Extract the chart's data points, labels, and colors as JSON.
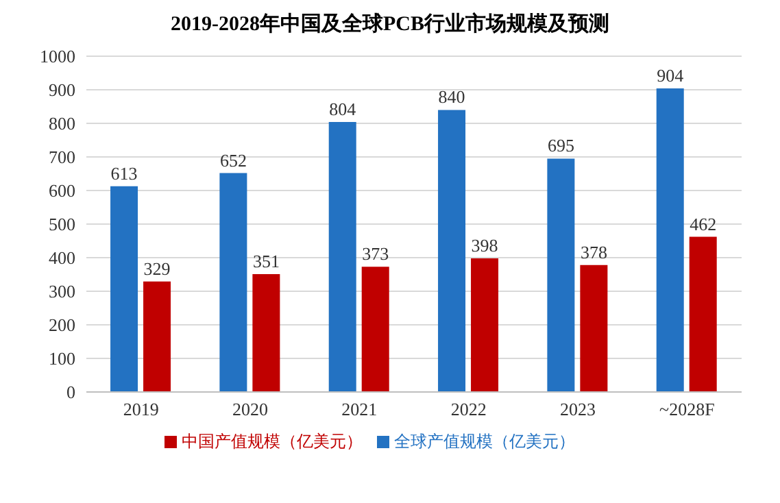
{
  "chart_data": {
    "type": "bar",
    "title": "2019-2028年中国及全球PCB行业市场规模及预测",
    "categories": [
      "2019",
      "2020",
      "2021",
      "2022",
      "2023",
      "~2028F"
    ],
    "series": [
      {
        "name": "全球产值规模（亿美元）",
        "color": "#2372c2",
        "values": [
          613,
          652,
          804,
          840,
          695,
          904
        ]
      },
      {
        "name": "中国产值规模（亿美元）",
        "color": "#c00000",
        "values": [
          329,
          351,
          373,
          398,
          378,
          462
        ]
      }
    ],
    "ylim": [
      0,
      1000
    ],
    "yticks": [
      0,
      100,
      200,
      300,
      400,
      500,
      600,
      700,
      800,
      900,
      1000
    ],
    "grid": "y",
    "legend": "bottom",
    "data_labels": true
  }
}
